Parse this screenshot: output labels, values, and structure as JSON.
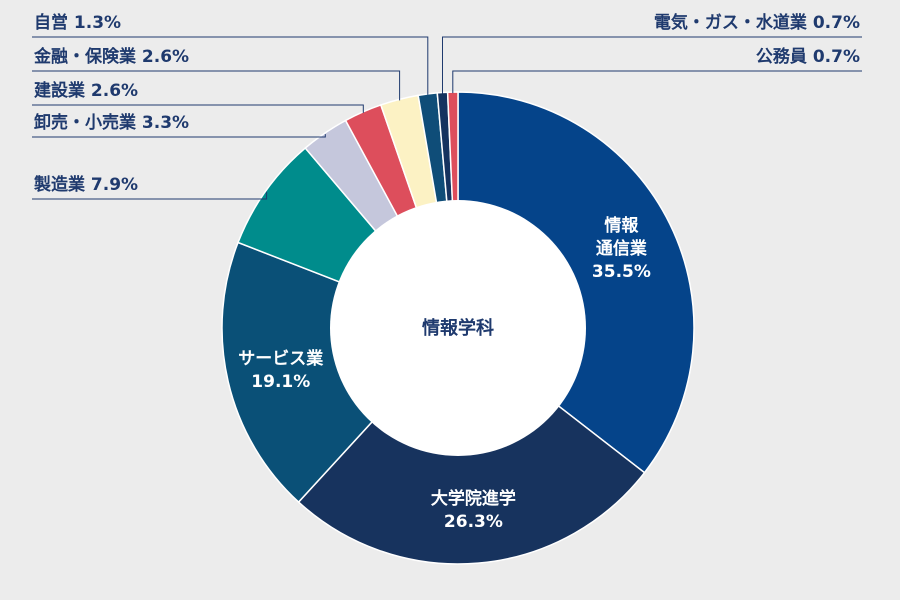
{
  "chart_data": {
    "type": "pie",
    "center_label": "情報学科",
    "slices": [
      {
        "name": "情報通信業",
        "lines": [
          "情報",
          "通信業"
        ],
        "value": 35.5,
        "value_label": "35.5%",
        "color": "#05448a",
        "label_position": "inside"
      },
      {
        "name": "大学院進学",
        "lines": [
          "大学院進学"
        ],
        "value": 26.3,
        "value_label": "26.3%",
        "color": "#17335e",
        "label_position": "inside"
      },
      {
        "name": "サービス業",
        "lines": [
          "サービス業"
        ],
        "value": 19.1,
        "value_label": "19.1%",
        "color": "#0a5077",
        "label_position": "inside"
      },
      {
        "name": "製造業",
        "value": 7.9,
        "value_label": "7.9%",
        "color": "#008c8c",
        "label_position": "left"
      },
      {
        "name": "卸売・小売業",
        "value": 3.3,
        "value_label": "3.3%",
        "color": "#c5c7dc",
        "label_position": "left"
      },
      {
        "name": "建設業",
        "value": 2.6,
        "value_label": "2.6%",
        "color": "#dd4e5c",
        "label_position": "left"
      },
      {
        "name": "金融・保険業",
        "value": 2.6,
        "value_label": "2.6%",
        "color": "#fcf2c4",
        "label_position": "left"
      },
      {
        "name": "自営",
        "value": 1.3,
        "value_label": "1.3%",
        "color": "#0f4d78",
        "label_position": "left"
      },
      {
        "name": "電気・ガス・水道業",
        "value": 0.7,
        "value_label": "0.7%",
        "color": "#15335f",
        "label_position": "right"
      },
      {
        "name": "公務員",
        "value": 0.7,
        "value_label": "0.7%",
        "color": "#dd4e5c",
        "label_position": "right"
      }
    ]
  }
}
